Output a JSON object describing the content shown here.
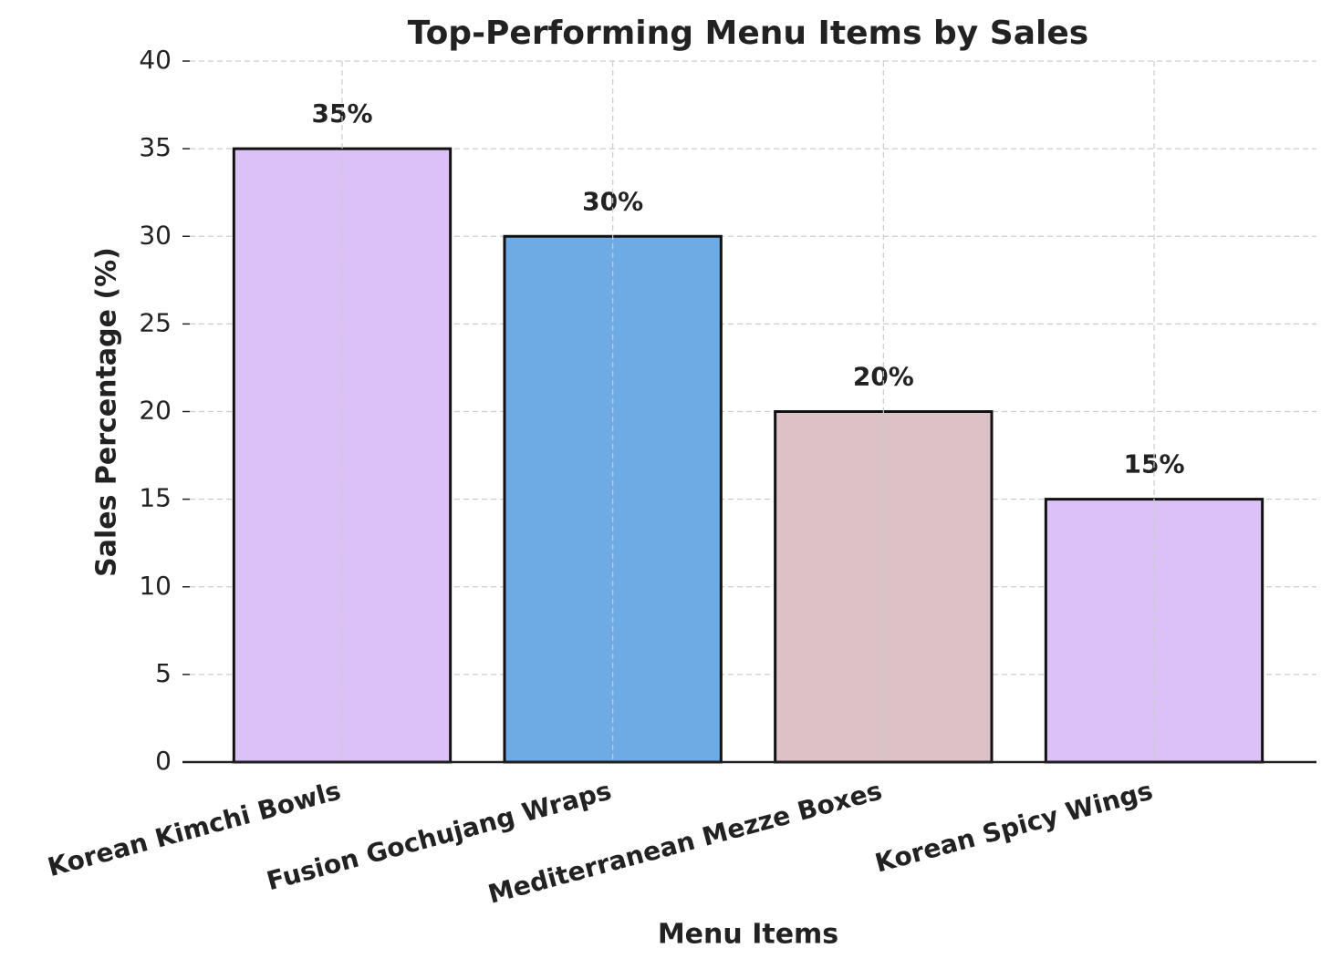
{
  "chart_data": {
    "type": "bar",
    "title": "Top-Performing Menu Items by Sales",
    "x_label": "Menu Items",
    "y_label": "Sales Percentage (%)",
    "categories": [
      "Korean Kimchi Bowls",
      "Fusion Gochujang Wraps",
      "Mediterranean Mezze Boxes",
      "Korean Spicy Wings"
    ],
    "values": [
      35,
      30,
      20,
      15
    ],
    "value_labels": [
      "35%",
      "30%",
      "20%",
      "15%"
    ],
    "colors": [
      "#dcc1f7",
      "#6eaae3",
      "#dcc2c6",
      "#dcc1f7"
    ],
    "ylim": [
      0,
      40
    ],
    "yticks": [
      0,
      5,
      10,
      15,
      20,
      25,
      30,
      35,
      40
    ],
    "grid": true
  }
}
